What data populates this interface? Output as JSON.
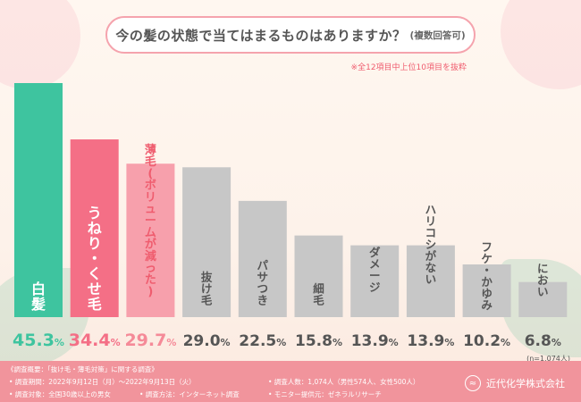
{
  "header": {
    "title": "今の髪の状態で当てはまるものはありますか？",
    "title_sub": "(複数回答可)",
    "note": "※全12項目中上位10項目を抜粋"
  },
  "chart_data": {
    "type": "bar",
    "categories": [
      "白髪",
      "うねり・くせ毛",
      "薄毛(ボリュームが減った)",
      "抜け毛",
      "パサつき",
      "細毛",
      "ダメージ",
      "ハリコシがない",
      "フケ・かゆみ",
      "におい"
    ],
    "values": [
      45.3,
      34.4,
      29.7,
      29.0,
      22.5,
      15.8,
      13.9,
      13.9,
      10.2,
      6.8
    ],
    "value_labels": [
      "45.3%",
      "34.4%",
      "29.7%",
      "29.0%",
      "22.5%",
      "15.8%",
      "13.9%",
      "13.9%",
      "10.2%",
      "6.8%"
    ],
    "colors": [
      "#3ec49f",
      "#f46f86",
      "#f7a0ac",
      "#c7c7c7",
      "#c7c7c7",
      "#c7c7c7",
      "#c7c7c7",
      "#c7c7c7",
      "#c7c7c7",
      "#c7c7c7"
    ],
    "label_colors": [
      "#ffffff",
      "#ffffff",
      "#ef5c6e",
      "#555555",
      "#555555",
      "#555555",
      "#555555",
      "#555555",
      "#555555",
      "#555555"
    ],
    "pct_colors": [
      "#3ec49f",
      "#f46f86",
      "#f58a98",
      "#555555",
      "#555555",
      "#555555",
      "#555555",
      "#555555",
      "#555555",
      "#555555"
    ],
    "ylim": [
      0,
      50
    ],
    "grid": false,
    "legend": "none"
  },
  "sample_note": "(n=1,074人)",
  "footer": {
    "survey_title": "《調査概要：「抜け毛・薄毛対策」に関する調査》",
    "period": "• 調査期間：2022年9月12日（月）〜2022年9月13日（火）",
    "target": "• 調査対象：全国30歳以上の男女",
    "method": "• 調査方法：インターネット調査",
    "count": "• 調査人数：1,074人（男性574人、女性500人）",
    "provider": "• モニター提供元：ゼネラルリサーチ",
    "brand": "近代化学株式会社"
  }
}
